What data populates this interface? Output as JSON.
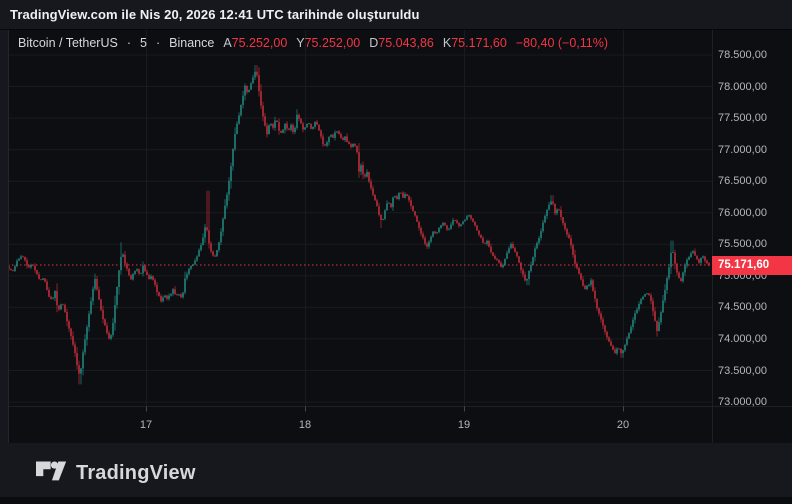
{
  "topbar": {
    "text": "TradingView.com ile Nis 20, 2026 12:41 UTC tarihinde oluşturuldu"
  },
  "header": {
    "symbol": "Bitcoin / TetherUS",
    "separator": "·",
    "interval": "5",
    "exchange": "Binance",
    "ohlc": [
      {
        "label": "A",
        "value": "75.252,00"
      },
      {
        "label": "Y",
        "value": "75.252,00"
      },
      {
        "label": "D",
        "value": "75.043,86"
      },
      {
        "label": "K",
        "value": "75.171,60"
      }
    ],
    "change": "−80,40 (−0,11%)"
  },
  "footer": {
    "brand": "TradingView"
  },
  "colors": {
    "up": "#26a69a",
    "down": "#f23645",
    "last_price": "#f23645",
    "grid": "rgba(255,255,255,0.055)",
    "tick": "#43464e",
    "axis_border": "rgba(255,255,255,0.08)"
  },
  "chart_data": {
    "type": "candlestick",
    "title": "Bitcoin / TetherUS · 5 · Binance",
    "ohlc_current": {
      "open": 75252.0,
      "high": 75252.0,
      "low": 75043.86,
      "close": 75171.6,
      "change": -80.4,
      "change_pct": -0.11
    },
    "last_price": 75171.6,
    "last_price_label": "75.171,60",
    "y_axis": {
      "max": 78500,
      "min": 73000,
      "step": 500,
      "tick_prices": [
        78500,
        78000,
        77500,
        77000,
        76500,
        76000,
        75500,
        75000,
        74500,
        74000,
        73500,
        73000
      ],
      "tick_labels": [
        "78.500,00",
        "78.000,00",
        "77.500,00",
        "77.000,00",
        "76.500,00",
        "76.000,00",
        "75.500,00",
        "75.000,00",
        "74.500,00",
        "74.000,00",
        "73.500,00",
        "73.000,00"
      ]
    },
    "x_axis": {
      "tick_labels": [
        "17",
        "18",
        "19",
        "20"
      ],
      "tick_x": [
        146,
        305,
        464,
        623
      ]
    },
    "grid": true,
    "price_path": [
      [
        8,
        75150
      ],
      [
        12,
        75050
      ],
      [
        16,
        75200
      ],
      [
        20,
        75300
      ],
      [
        24,
        75280
      ],
      [
        28,
        75120
      ],
      [
        32,
        75200
      ],
      [
        36,
        75050
      ],
      [
        40,
        74920
      ],
      [
        44,
        74970
      ],
      [
        48,
        74700
      ],
      [
        52,
        74600
      ],
      [
        55,
        74750
      ],
      [
        58,
        74420
      ],
      [
        62,
        74600
      ],
      [
        66,
        74350
      ],
      [
        70,
        74100
      ],
      [
        74,
        73850
      ],
      [
        77,
        73600
      ],
      [
        80,
        73380
      ],
      [
        83,
        73800
      ],
      [
        86,
        74100
      ],
      [
        89,
        74400
      ],
      [
        92,
        74700
      ],
      [
        95,
        74950
      ],
      [
        98,
        74700
      ],
      [
        101,
        74450
      ],
      [
        104,
        74250
      ],
      [
        107,
        74100
      ],
      [
        110,
        73980
      ],
      [
        113,
        74250
      ],
      [
        116,
        74700
      ],
      [
        119,
        75100
      ],
      [
        122,
        75400
      ],
      [
        125,
        75200
      ],
      [
        128,
        75050
      ],
      [
        131,
        74950
      ],
      [
        134,
        75050
      ],
      [
        137,
        75100
      ],
      [
        140,
        75000
      ],
      [
        143,
        75150
      ],
      [
        146,
        75050
      ],
      [
        149,
        74950
      ],
      [
        152,
        75000
      ],
      [
        155,
        74850
      ],
      [
        158,
        74700
      ],
      [
        161,
        74600
      ],
      [
        164,
        74700
      ],
      [
        167,
        74620
      ],
      [
        170,
        74700
      ],
      [
        173,
        74780
      ],
      [
        176,
        74680
      ],
      [
        179,
        74720
      ],
      [
        182,
        74640
      ],
      [
        185,
        74950
      ],
      [
        188,
        75080
      ],
      [
        191,
        75150
      ],
      [
        194,
        75200
      ],
      [
        197,
        75300
      ],
      [
        200,
        75450
      ],
      [
        203,
        75600
      ],
      [
        206,
        75850
      ],
      [
        209,
        75500
      ],
      [
        212,
        75350
      ],
      [
        215,
        75300
      ],
      [
        218,
        75450
      ],
      [
        221,
        75700
      ],
      [
        224,
        76000
      ],
      [
        227,
        76300
      ],
      [
        230,
        76600
      ],
      [
        233,
        77000
      ],
      [
        236,
        77350
      ],
      [
        239,
        77550
      ],
      [
        242,
        77800
      ],
      [
        245,
        78000
      ],
      [
        248,
        77880
      ],
      [
        251,
        78050
      ],
      [
        254,
        78200
      ],
      [
        256,
        78280
      ],
      [
        258,
        78050
      ],
      [
        261,
        77700
      ],
      [
        264,
        77450
      ],
      [
        267,
        77250
      ],
      [
        270,
        77450
      ],
      [
        273,
        77350
      ],
      [
        276,
        77500
      ],
      [
        279,
        77300
      ],
      [
        282,
        77250
      ],
      [
        285,
        77400
      ],
      [
        288,
        77300
      ],
      [
        291,
        77380
      ],
      [
        294,
        77250
      ],
      [
        297,
        77550
      ],
      [
        300,
        77450
      ],
      [
        303,
        77320
      ],
      [
        306,
        77380
      ],
      [
        309,
        77420
      ],
      [
        312,
        77300
      ],
      [
        315,
        77450
      ],
      [
        318,
        77350
      ],
      [
        321,
        77200
      ],
      [
        324,
        77020
      ],
      [
        327,
        77120
      ],
      [
        330,
        77250
      ],
      [
        333,
        77200
      ],
      [
        336,
        77300
      ],
      [
        339,
        77250
      ],
      [
        342,
        77150
      ],
      [
        345,
        77200
      ],
      [
        348,
        77100
      ],
      [
        351,
        77050
      ],
      [
        354,
        77100
      ],
      [
        357,
        76950
      ],
      [
        359,
        76650
      ],
      [
        361,
        76750
      ],
      [
        364,
        76550
      ],
      [
        367,
        76650
      ],
      [
        370,
        76420
      ],
      [
        373,
        76300
      ],
      [
        376,
        76150
      ],
      [
        379,
        75980
      ],
      [
        382,
        75850
      ],
      [
        385,
        76050
      ],
      [
        388,
        76200
      ],
      [
        391,
        76100
      ],
      [
        394,
        76300
      ],
      [
        397,
        76220
      ],
      [
        400,
        76350
      ],
      [
        403,
        76250
      ],
      [
        406,
        76300
      ],
      [
        409,
        76200
      ],
      [
        412,
        76080
      ],
      [
        415,
        75950
      ],
      [
        418,
        75800
      ],
      [
        421,
        75680
      ],
      [
        424,
        75550
      ],
      [
        427,
        75470
      ],
      [
        430,
        75600
      ],
      [
        433,
        75700
      ],
      [
        436,
        75650
      ],
      [
        439,
        75750
      ],
      [
        442,
        75850
      ],
      [
        445,
        75800
      ],
      [
        448,
        75720
      ],
      [
        451,
        75820
      ],
      [
        454,
        75900
      ],
      [
        457,
        75850
      ],
      [
        460,
        75780
      ],
      [
        463,
        75850
      ],
      [
        466,
        75920
      ],
      [
        469,
        75950
      ],
      [
        472,
        75880
      ],
      [
        475,
        75800
      ],
      [
        478,
        75700
      ],
      [
        481,
        75600
      ],
      [
        484,
        75500
      ],
      [
        487,
        75550
      ],
      [
        490,
        75420
      ],
      [
        493,
        75320
      ],
      [
        496,
        75270
      ],
      [
        499,
        75220
      ],
      [
        502,
        75120
      ],
      [
        505,
        75280
      ],
      [
        508,
        75420
      ],
      [
        511,
        75500
      ],
      [
        514,
        75400
      ],
      [
        517,
        75300
      ],
      [
        520,
        75150
      ],
      [
        523,
        75020
      ],
      [
        526,
        74900
      ],
      [
        529,
        75080
      ],
      [
        532,
        75200
      ],
      [
        535,
        75450
      ],
      [
        538,
        75550
      ],
      [
        541,
        75700
      ],
      [
        544,
        75900
      ],
      [
        547,
        76050
      ],
      [
        550,
        76150
      ],
      [
        552,
        76220
      ],
      [
        555,
        76000
      ],
      [
        558,
        76100
      ],
      [
        561,
        75920
      ],
      [
        564,
        75780
      ],
      [
        567,
        75650
      ],
      [
        570,
        75550
      ],
      [
        573,
        75320
      ],
      [
        576,
        75150
      ],
      [
        579,
        75050
      ],
      [
        582,
        74880
      ],
      [
        585,
        74800
      ],
      [
        588,
        74850
      ],
      [
        591,
        74920
      ],
      [
        594,
        74700
      ],
      [
        597,
        74500
      ],
      [
        600,
        74350
      ],
      [
        603,
        74200
      ],
      [
        606,
        74050
      ],
      [
        609,
        73950
      ],
      [
        612,
        73850
      ],
      [
        615,
        73780
      ],
      [
        618,
        73880
      ],
      [
        621,
        73760
      ],
      [
        624,
        73850
      ],
      [
        627,
        74000
      ],
      [
        630,
        74150
      ],
      [
        633,
        74300
      ],
      [
        636,
        74450
      ],
      [
        639,
        74550
      ],
      [
        642,
        74650
      ],
      [
        645,
        74700
      ],
      [
        648,
        74750
      ],
      [
        651,
        74600
      ],
      [
        654,
        74350
      ],
      [
        657,
        74120
      ],
      [
        660,
        74350
      ],
      [
        663,
        74600
      ],
      [
        666,
        74850
      ],
      [
        669,
        75150
      ],
      [
        672,
        75450
      ],
      [
        675,
        75200
      ],
      [
        678,
        75000
      ],
      [
        681,
        74920
      ],
      [
        684,
        75100
      ],
      [
        687,
        75250
      ],
      [
        690,
        75320
      ],
      [
        693,
        75400
      ],
      [
        696,
        75300
      ],
      [
        699,
        75200
      ],
      [
        702,
        75320
      ],
      [
        705,
        75250
      ],
      [
        708,
        75180
      ],
      [
        710,
        75172
      ]
    ],
    "wick_spikes": [
      [
        80,
        73280,
        -1
      ],
      [
        121,
        75530,
        1
      ],
      [
        208,
        76350,
        1
      ],
      [
        256,
        78340,
        1
      ],
      [
        381,
        75760,
        -1
      ],
      [
        428,
        75430,
        -1
      ],
      [
        528,
        74850,
        -1
      ],
      [
        552,
        76280,
        1
      ],
      [
        622,
        73700,
        -1
      ],
      [
        672,
        75560,
        1
      ]
    ]
  }
}
